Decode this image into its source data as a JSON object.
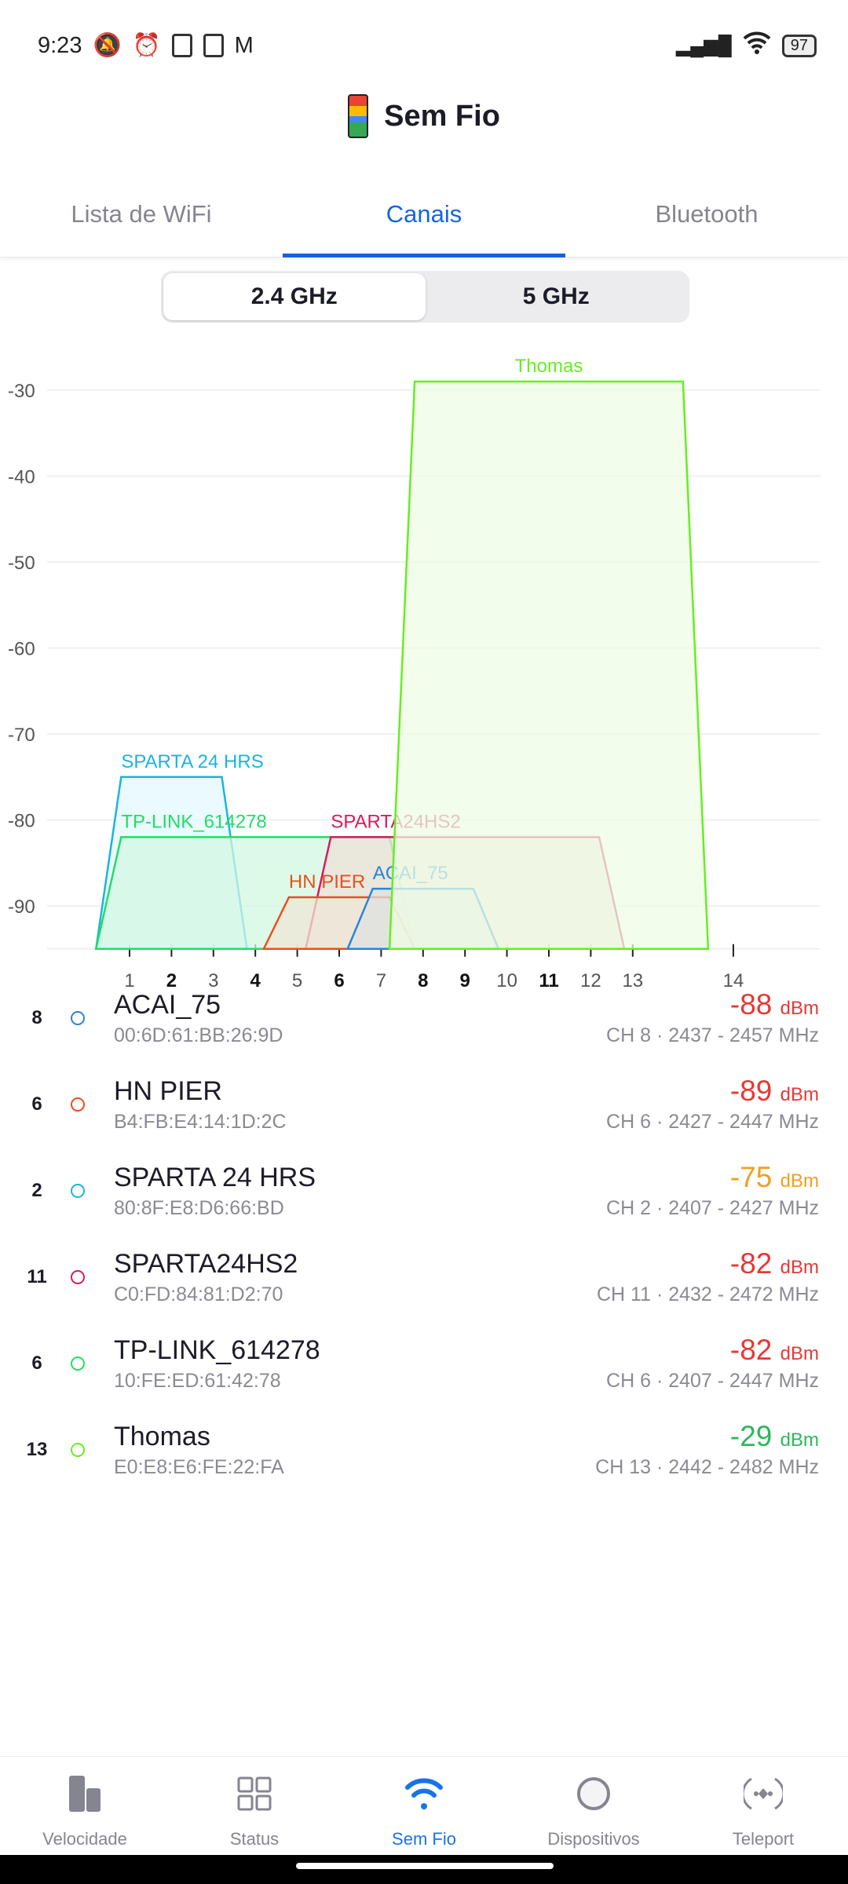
{
  "status_bar": {
    "time": "9:23",
    "battery": "97"
  },
  "header": {
    "title": "Sem Fio"
  },
  "tabs": [
    {
      "label": "Lista de WiFi"
    },
    {
      "label": "Canais",
      "active": true
    },
    {
      "label": "Bluetooth"
    }
  ],
  "band_toggle": {
    "options": [
      "2.4 GHz",
      "5 GHz"
    ],
    "selected": "2.4 GHz"
  },
  "chart_data": {
    "type": "area",
    "y_ticks": [
      "-30",
      "-40",
      "-50",
      "-60",
      "-70",
      "-80",
      "-90"
    ],
    "ylim": [
      -95,
      -27
    ],
    "x_ticks": [
      "1",
      "2",
      "3",
      "4",
      "5",
      "6",
      "7",
      "8",
      "9",
      "10",
      "11",
      "12",
      "13",
      "14"
    ],
    "x_ticks_bold": [
      "2",
      "4",
      "6",
      "8",
      "9",
      "11"
    ],
    "grid": true,
    "series": [
      {
        "name": "SPARTA 24 HRS",
        "channel": 2,
        "freq_low": 2407,
        "freq_high": 2427,
        "dbm": -75,
        "color": "#1ab4e0",
        "fill": "#e4f8fe"
      },
      {
        "name": "TP-LINK_614278",
        "channel": 6,
        "freq_low": 2407,
        "freq_high": 2447,
        "dbm": -82,
        "color": "#22dd66",
        "fill": "#d2f8e2"
      },
      {
        "name": "SPARTA24HS2",
        "channel": 11,
        "freq_low": 2432,
        "freq_high": 2472,
        "dbm": -82,
        "color": "#d81b60",
        "fill": "#eee0d8"
      },
      {
        "name": "HN PIER",
        "channel": 6,
        "freq_low": 2427,
        "freq_high": 2447,
        "dbm": -89,
        "color": "#e8501c",
        "fill": "#efe6d6"
      },
      {
        "name": "ACAI_75",
        "channel": 8,
        "freq_low": 2437,
        "freq_high": 2457,
        "dbm": -88,
        "color": "#2b84d6",
        "fill": "#dde2e2"
      },
      {
        "name": "Thomas",
        "channel": 13,
        "freq_low": 2442,
        "freq_high": 2482,
        "dbm": -29,
        "color": "#66ee22",
        "fill": "#eefce4"
      }
    ]
  },
  "networks": [
    {
      "channel": "8",
      "name": "ACAI_75",
      "mac": "00:6D:61:BB:26:9D",
      "dbm": "-88",
      "unit": "dBm",
      "info": "CH 8 · 2437 - 2457 MHz",
      "color": "#2b84d6",
      "sig_color": "#e53935"
    },
    {
      "channel": "6",
      "name": "HN PIER",
      "mac": "B4:FB:E4:14:1D:2C",
      "dbm": "-89",
      "unit": "dBm",
      "info": "CH 6 · 2427 - 2447 MHz",
      "color": "#e8501c",
      "sig_color": "#e53935"
    },
    {
      "channel": "2",
      "name": "SPARTA 24 HRS",
      "mac": "80:8F:E8:D6:66:BD",
      "dbm": "-75",
      "unit": "dBm",
      "info": "CH 2 · 2407 - 2427 MHz",
      "color": "#1ab4e0",
      "sig_color": "#f0a020"
    },
    {
      "channel": "11",
      "name": "SPARTA24HS2",
      "mac": "C0:FD:84:81:D2:70",
      "dbm": "-82",
      "unit": "dBm",
      "info": "CH 11 · 2432 - 2472 MHz",
      "color": "#d81b60",
      "sig_color": "#e53935"
    },
    {
      "channel": "6",
      "name": "TP-LINK_614278",
      "mac": "10:FE:ED:61:42:78",
      "dbm": "-82",
      "unit": "dBm",
      "info": "CH 6 · 2407 - 2447 MHz",
      "color": "#22dd66",
      "sig_color": "#e53935"
    },
    {
      "channel": "13",
      "name": "Thomas",
      "mac": "E0:E8:E6:FE:22:FA",
      "dbm": "-29",
      "unit": "dBm",
      "info": "CH 13 · 2442 - 2482 MHz",
      "color": "#66ee22",
      "sig_color": "#2eb85c"
    }
  ],
  "bottom_nav": [
    {
      "label": "Velocidade",
      "icon": "bar-chart-icon"
    },
    {
      "label": "Status",
      "icon": "grid-icon"
    },
    {
      "label": "Sem Fio",
      "icon": "wifi-icon",
      "active": true
    },
    {
      "label": "Dispositivos",
      "icon": "circle-icon"
    },
    {
      "label": "Teleport",
      "icon": "teleport-icon"
    }
  ]
}
